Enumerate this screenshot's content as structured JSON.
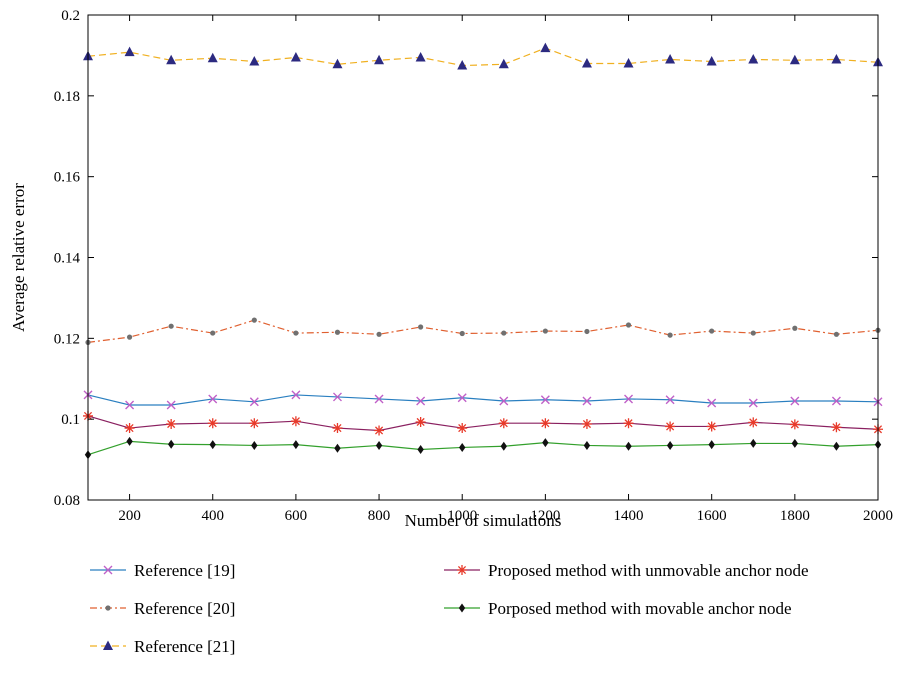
{
  "chart_data": {
    "type": "line",
    "xlabel": "Number of simulations",
    "ylabel": "Average relative error",
    "xlim": [
      100,
      2000
    ],
    "ylim": [
      0.08,
      0.2
    ],
    "x_ticks": [
      200,
      400,
      600,
      800,
      1000,
      1200,
      1400,
      1600,
      1800,
      2000
    ],
    "y_ticks": [
      0.08,
      0.1,
      0.12,
      0.14,
      0.16,
      0.18,
      0.2
    ],
    "y_tick_labels": [
      "0.08",
      "0.1",
      "0.12",
      "0.14",
      "0.16",
      "0.18",
      "0.2"
    ],
    "grid": false,
    "legend_position": "bottom",
    "x": [
      100,
      200,
      300,
      400,
      500,
      600,
      700,
      800,
      900,
      1000,
      1100,
      1200,
      1300,
      1400,
      1500,
      1600,
      1700,
      1800,
      1900,
      2000
    ],
    "series": [
      {
        "name": "Reference [19]",
        "color": "#2a7fc0",
        "marker_color": "#c060c8",
        "marker": "x",
        "dash": "solid",
        "values": [
          0.106,
          0.1035,
          0.1035,
          0.105,
          0.1043,
          0.106,
          0.1055,
          0.105,
          0.1045,
          0.1053,
          0.1045,
          0.1048,
          0.1045,
          0.105,
          0.1048,
          0.104,
          0.104,
          0.1045,
          0.1045,
          0.1043
        ]
      },
      {
        "name": "Reference [20]",
        "color": "#e06030",
        "marker_color": "#707070",
        "marker": "dot",
        "dash": "dashdot",
        "values": [
          0.119,
          0.1203,
          0.123,
          0.1213,
          0.1245,
          0.1213,
          0.1215,
          0.121,
          0.1228,
          0.1212,
          0.1213,
          0.1218,
          0.1217,
          0.1233,
          0.1208,
          0.1218,
          0.1213,
          0.1225,
          0.121,
          0.122
        ]
      },
      {
        "name": "Reference [21]",
        "color": "#f0b020",
        "marker_color": "#2c2a80",
        "marker": "triangle",
        "dash": "dashed",
        "values": [
          0.1898,
          0.1908,
          0.1888,
          0.1893,
          0.1885,
          0.1895,
          0.1878,
          0.1888,
          0.1895,
          0.1875,
          0.1878,
          0.1918,
          0.188,
          0.188,
          0.189,
          0.1885,
          0.189,
          0.1888,
          0.189,
          0.1883
        ]
      },
      {
        "name": "Proposed method with unmovable anchor node",
        "color": "#8a2060",
        "marker_color": "#e83a2a",
        "marker": "asterisk",
        "dash": "solid",
        "values": [
          0.1008,
          0.0978,
          0.0988,
          0.099,
          0.099,
          0.0995,
          0.0978,
          0.0972,
          0.0993,
          0.0978,
          0.099,
          0.099,
          0.0988,
          0.099,
          0.0982,
          0.0982,
          0.0992,
          0.0987,
          0.098,
          0.0975
        ]
      },
      {
        "name": "Porposed method with movable anchor node",
        "color": "#33a02c",
        "marker_color": "#111111",
        "marker": "diamond",
        "dash": "solid",
        "values": [
          0.0912,
          0.0945,
          0.0938,
          0.0937,
          0.0935,
          0.0937,
          0.0928,
          0.0935,
          0.0925,
          0.093,
          0.0933,
          0.0942,
          0.0935,
          0.0933,
          0.0935,
          0.0937,
          0.094,
          0.094,
          0.0933,
          0.0937
        ]
      }
    ]
  }
}
